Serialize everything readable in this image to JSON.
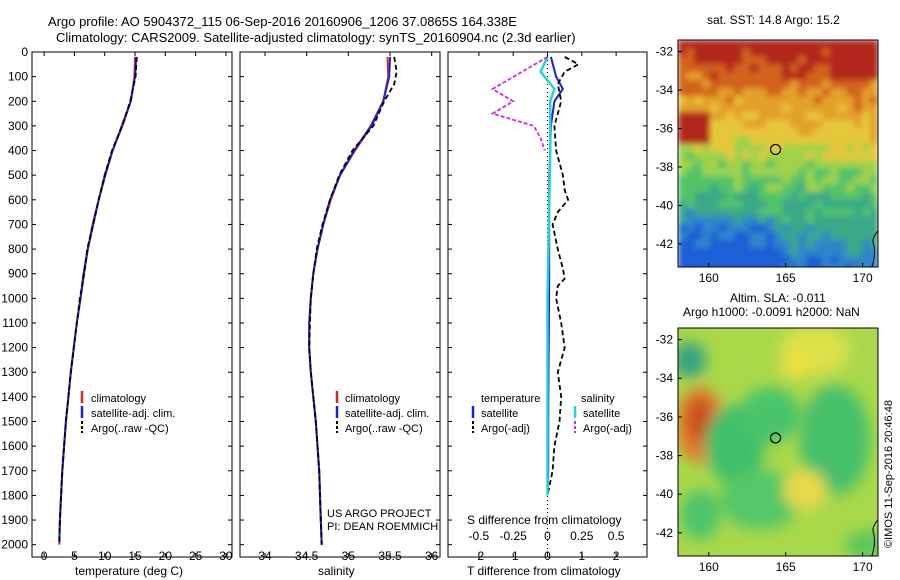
{
  "header": {
    "title_line1": "Argo profile: AO 5904372_115 06-Sep-2016 20160906_1206 37.0865S 164.338E",
    "title_line2": "Climatology: CARS2009. Satellite-adjusted climatology: synTS_20160904.nc (2.3d earlier)"
  },
  "colors": {
    "climatology": "#d62728",
    "satellite": "#1f1fd6",
    "argo": "#000000",
    "salinity_sat": "#22d3d8",
    "salinity_argo": "#d62ad6"
  },
  "chart_data": [
    {
      "type": "line",
      "panel": "temperature",
      "xlabel": "temperature (deg C)",
      "xlim": [
        -2,
        31
      ],
      "ylim": [
        0,
        2050
      ],
      "xticks": [
        0,
        5,
        10,
        15,
        20,
        25,
        30
      ],
      "yticks": [
        0,
        100,
        200,
        300,
        400,
        500,
        600,
        700,
        800,
        900,
        1000,
        1100,
        1200,
        1300,
        1400,
        1500,
        1600,
        1700,
        1800,
        1900,
        2000
      ],
      "y_reversed": true,
      "legend": [
        "climatology",
        "satellite-adj. clim.",
        "Argo(..raw -QC)"
      ],
      "legend_position": "bottom-center",
      "series": [
        {
          "name": "climatology",
          "points": [
            [
              15.0,
              20
            ],
            [
              14.9,
              100
            ],
            [
              14.3,
              200
            ],
            [
              12.8,
              300
            ],
            [
              11.3,
              400
            ],
            [
              10.0,
              500
            ],
            [
              9.0,
              600
            ],
            [
              8.0,
              700
            ],
            [
              7.2,
              800
            ],
            [
              6.6,
              900
            ],
            [
              6.0,
              1000
            ],
            [
              5.4,
              1100
            ],
            [
              4.9,
              1200
            ],
            [
              4.4,
              1300
            ],
            [
              4.0,
              1400
            ],
            [
              3.6,
              1500
            ],
            [
              3.3,
              1600
            ],
            [
              3.0,
              1700
            ],
            [
              2.8,
              1800
            ],
            [
              2.6,
              1900
            ],
            [
              2.5,
              2000
            ]
          ]
        },
        {
          "name": "satellite-adj. clim.",
          "points": [
            [
              15.2,
              20
            ],
            [
              15.0,
              100
            ],
            [
              14.3,
              200
            ],
            [
              12.9,
              300
            ],
            [
              11.3,
              400
            ],
            [
              10.1,
              500
            ],
            [
              9.0,
              600
            ],
            [
              8.1,
              700
            ],
            [
              7.2,
              800
            ],
            [
              6.5,
              900
            ],
            [
              6.0,
              1000
            ],
            [
              5.4,
              1100
            ],
            [
              4.9,
              1200
            ],
            [
              4.4,
              1300
            ],
            [
              4.0,
              1400
            ],
            [
              3.6,
              1500
            ],
            [
              3.3,
              1600
            ],
            [
              3.0,
              1700
            ],
            [
              2.8,
              1800
            ],
            [
              2.6,
              1900
            ],
            [
              2.5,
              1990
            ]
          ]
        },
        {
          "name": "Argo(..raw -QC)",
          "points": [
            [
              15.3,
              20
            ],
            [
              15.1,
              100
            ],
            [
              14.2,
              200
            ],
            [
              12.9,
              300
            ],
            [
              11.2,
              400
            ],
            [
              10.0,
              500
            ],
            [
              9.0,
              600
            ],
            [
              8.1,
              700
            ],
            [
              7.1,
              800
            ],
            [
              6.6,
              900
            ],
            [
              5.9,
              1000
            ],
            [
              5.4,
              1100
            ],
            [
              4.9,
              1200
            ],
            [
              4.4,
              1300
            ],
            [
              4.0,
              1400
            ],
            [
              3.6,
              1500
            ],
            [
              3.3,
              1600
            ],
            [
              3.0,
              1700
            ],
            [
              2.8,
              1800
            ],
            [
              2.6,
              1900
            ],
            [
              2.5,
              1995
            ]
          ]
        }
      ]
    },
    {
      "type": "line",
      "panel": "salinity",
      "xlabel": "salinity",
      "xlim": [
        33.7,
        36.1
      ],
      "ylim": [
        0,
        2050
      ],
      "xticks": [
        34,
        34.5,
        35,
        35.5,
        36
      ],
      "y_reversed": true,
      "legend": [
        "climatology",
        "satellite-adj. clim.",
        "Argo(..raw -QC)"
      ],
      "legend_position": "bottom-center",
      "annotation": [
        "US ARGO PROJECT",
        "PI: DEAN ROEMMICH"
      ],
      "series": [
        {
          "name": "climatology",
          "points": [
            [
              35.47,
              20
            ],
            [
              35.48,
              100
            ],
            [
              35.42,
              200
            ],
            [
              35.28,
              300
            ],
            [
              35.08,
              400
            ],
            [
              34.9,
              500
            ],
            [
              34.79,
              600
            ],
            [
              34.7,
              700
            ],
            [
              34.63,
              800
            ],
            [
              34.58,
              900
            ],
            [
              34.55,
              1000
            ],
            [
              34.53,
              1100
            ],
            [
              34.53,
              1200
            ],
            [
              34.55,
              1300
            ],
            [
              34.58,
              1400
            ],
            [
              34.61,
              1500
            ],
            [
              34.63,
              1600
            ],
            [
              34.65,
              1700
            ],
            [
              34.66,
              1800
            ],
            [
              34.67,
              1900
            ],
            [
              34.68,
              2000
            ]
          ]
        },
        {
          "name": "satellite-adj. clim.",
          "points": [
            [
              35.5,
              20
            ],
            [
              35.49,
              100
            ],
            [
              35.42,
              200
            ],
            [
              35.27,
              300
            ],
            [
              35.07,
              400
            ],
            [
              34.9,
              500
            ],
            [
              34.78,
              600
            ],
            [
              34.7,
              700
            ],
            [
              34.63,
              800
            ],
            [
              34.58,
              900
            ],
            [
              34.55,
              1000
            ],
            [
              34.53,
              1100
            ],
            [
              34.53,
              1200
            ],
            [
              34.55,
              1300
            ],
            [
              34.58,
              1400
            ],
            [
              34.61,
              1500
            ],
            [
              34.63,
              1600
            ],
            [
              34.65,
              1700
            ],
            [
              34.66,
              1800
            ],
            [
              34.67,
              1900
            ],
            [
              34.68,
              2000
            ]
          ]
        },
        {
          "name": "Argo(..raw -QC)",
          "points": [
            [
              35.55,
              20
            ],
            [
              35.58,
              80
            ],
            [
              35.55,
              130
            ],
            [
              35.43,
              200
            ],
            [
              35.3,
              300
            ],
            [
              35.05,
              400
            ],
            [
              34.89,
              500
            ],
            [
              34.78,
              600
            ],
            [
              34.69,
              700
            ],
            [
              34.62,
              800
            ],
            [
              34.58,
              900
            ],
            [
              34.55,
              1000
            ],
            [
              34.54,
              1100
            ],
            [
              34.53,
              1200
            ],
            [
              34.55,
              1300
            ],
            [
              34.58,
              1400
            ],
            [
              34.61,
              1500
            ],
            [
              34.63,
              1600
            ],
            [
              34.65,
              1700
            ],
            [
              34.66,
              1800
            ],
            [
              34.67,
              1900
            ],
            [
              34.68,
              2000
            ]
          ]
        }
      ]
    },
    {
      "type": "line",
      "panel": "difference",
      "xlabel": "T difference from climatology",
      "xlabel_top": "S difference from climatology",
      "xlim": [
        -2.9,
        2.9
      ],
      "ylim": [
        0,
        2050
      ],
      "xticks": [
        -2,
        -1,
        0,
        1,
        2
      ],
      "xticks_s": [
        -0.5,
        -0.25,
        0,
        0.25,
        0.5
      ],
      "y_reversed": true,
      "legend_groups": [
        {
          "title": "temperature",
          "items": [
            "satellite",
            "Argo(-adj)"
          ]
        },
        {
          "title": "salinity",
          "items": [
            "satellite",
            "Argo(-adj)"
          ]
        }
      ],
      "series": [
        {
          "name": "temperature satellite",
          "points": [
            [
              0.1,
              20
            ],
            [
              0.25,
              100
            ],
            [
              0.45,
              150
            ],
            [
              0.2,
              200
            ],
            [
              0.1,
              300
            ],
            [
              0.08,
              400
            ],
            [
              0.05,
              500
            ],
            [
              0.05,
              700
            ],
            [
              0.05,
              900
            ],
            [
              0.04,
              1100
            ],
            [
              0.03,
              1300
            ],
            [
              0.02,
              1500
            ],
            [
              0.02,
              1700
            ],
            [
              0.0,
              1800
            ]
          ]
        },
        {
          "name": "temperature Argo(-adj)",
          "points": [
            [
              0.5,
              20
            ],
            [
              0.9,
              50
            ],
            [
              0.5,
              80
            ],
            [
              0.3,
              130
            ],
            [
              0.4,
              200
            ],
            [
              0.2,
              300
            ],
            [
              0.25,
              400
            ],
            [
              0.45,
              500
            ],
            [
              0.5,
              560
            ],
            [
              0.6,
              600
            ],
            [
              0.3,
              650
            ],
            [
              0.15,
              700
            ],
            [
              0.3,
              800
            ],
            [
              0.45,
              880
            ],
            [
              0.5,
              920
            ],
            [
              0.3,
              950
            ],
            [
              0.25,
              1000
            ],
            [
              0.4,
              1100
            ],
            [
              0.5,
              1200
            ],
            [
              0.3,
              1300
            ],
            [
              0.4,
              1400
            ],
            [
              0.35,
              1500
            ],
            [
              0.2,
              1600
            ],
            [
              0.15,
              1700
            ],
            [
              0.0,
              1800
            ]
          ]
        },
        {
          "name": "salinity satellite",
          "points": [
            [
              0.0,
              20
            ],
            [
              -0.05,
              80
            ],
            [
              0.05,
              150
            ],
            [
              0.02,
              200
            ],
            [
              0.02,
              400
            ],
            [
              0.01,
              700
            ],
            [
              0.0,
              1000
            ],
            [
              0.0,
              1400
            ],
            [
              0.0,
              1800
            ]
          ]
        },
        {
          "name": "salinity Argo(-adj)",
          "points": [
            [
              0.0,
              20
            ],
            [
              -0.4,
              150
            ],
            [
              -0.25,
              200
            ],
            [
              -0.4,
              250
            ],
            [
              -0.1,
              300
            ],
            [
              -0.05,
              350
            ],
            [
              -0.02,
              400
            ]
          ]
        }
      ]
    },
    {
      "type": "heatmap",
      "panel": "sst_map",
      "title": "sat. SST: 14.8 Argo: 15.2",
      "xlim": [
        158,
        171
      ],
      "ylim": [
        -43.2,
        -31.4
      ],
      "xticks": [
        160,
        165,
        170
      ],
      "yticks": [
        -32,
        -34,
        -36,
        -38,
        -40,
        -42
      ],
      "marker": [
        164.34,
        -37.09
      ],
      "color_bands": [
        "#b3271a",
        "#d2621c",
        "#e3a02a",
        "#e6c73a",
        "#9fd24a",
        "#52c36a",
        "#3aa888",
        "#2f86c8",
        "#1e5fd6"
      ]
    },
    {
      "type": "heatmap",
      "panel": "sla_map",
      "title_line1": "Altim. SLA: -0.011",
      "title_line2": "Argo h1000: -0.0091 h2000: NaN",
      "xlim": [
        158,
        171
      ],
      "ylim": [
        -43.2,
        -31.4
      ],
      "xticks": [
        160,
        165,
        170
      ],
      "yticks": [
        -32,
        -34,
        -36,
        -38,
        -40,
        -42
      ],
      "marker": [
        164.34,
        -37.09
      ]
    }
  ],
  "footer": {
    "credit": "©IMOS 11-Sep-2016 20:46:48"
  }
}
